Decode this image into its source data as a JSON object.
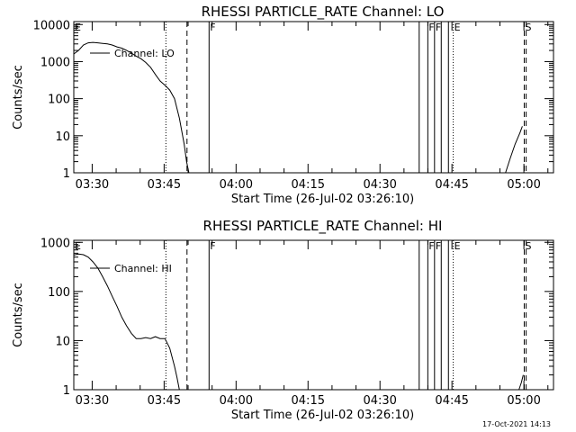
{
  "chart_data": [
    {
      "type": "line",
      "title": "RHESSI PARTICLE_RATE Channel: LO",
      "xlabel": "Start Time (26-Jul-02 03:26:10)",
      "ylabel": "Counts/sec",
      "yscale": "log",
      "xlim_min": [
        0,
        100
      ],
      "ylim": [
        1,
        12000
      ],
      "x_tick_labels": [
        "03:30",
        "03:45",
        "04:00",
        "04:15",
        "04:30",
        "04:45",
        "05:00"
      ],
      "x_tick_values_min": [
        3.83,
        18.83,
        33.83,
        48.83,
        63.83,
        78.83,
        93.83
      ],
      "y_tick_labels": [
        "1",
        "10",
        "100",
        "1000",
        "10000"
      ],
      "y_tick_values": [
        1,
        10,
        100,
        1000,
        10000
      ],
      "legend": "Channel: LO",
      "legend_position": "top-left",
      "series": [
        {
          "name": "Channel: LO",
          "x": [
            0,
            1,
            2,
            3,
            4,
            5,
            6,
            7,
            8,
            9,
            10,
            11,
            12,
            13,
            14,
            15,
            16,
            17,
            18,
            19,
            20,
            21,
            22,
            23,
            23.5,
            24
          ],
          "y": [
            1600,
            2000,
            2800,
            3200,
            3300,
            3200,
            3100,
            3000,
            2800,
            2500,
            2300,
            2000,
            1700,
            1400,
            1200,
            950,
            700,
            450,
            300,
            230,
            170,
            100,
            30,
            6,
            2,
            1
          ]
        },
        {
          "name": "",
          "x": [
            90.0,
            91.0,
            92.0,
            93.0,
            93.5
          ],
          "y": [
            1,
            2.5,
            6,
            12,
            18
          ]
        }
      ],
      "markers": [
        {
          "label": "E",
          "x": 0,
          "style": "solid"
        },
        {
          "label": "",
          "x": 19.2,
          "style": "dotted"
        },
        {
          "label": "",
          "x": 23.6,
          "style": "dashed"
        },
        {
          "label": "F",
          "x": 28.2,
          "style": "solid"
        },
        {
          "label": "",
          "x": 72.0,
          "style": "solid"
        },
        {
          "label": "F",
          "x": 73.8,
          "style": "solid"
        },
        {
          "label": "F",
          "x": 75.2,
          "style": "solid"
        },
        {
          "label": "",
          "x": 76.6,
          "style": "solid"
        },
        {
          "label": "",
          "x": 78.1,
          "style": "solid"
        },
        {
          "label": "E",
          "x": 79.1,
          "style": "dotted"
        },
        {
          "label": "S",
          "x": 93.9,
          "style": "dashed"
        },
        {
          "label": "",
          "x": 94.3,
          "style": "dashed"
        }
      ]
    },
    {
      "type": "line",
      "title": "RHESSI PARTICLE_RATE Channel: HI",
      "xlabel": "Start Time (26-Jul-02 03:26:10)",
      "ylabel": "Counts/sec",
      "yscale": "log",
      "xlim_min": [
        0,
        100
      ],
      "ylim": [
        1,
        1100
      ],
      "x_tick_labels": [
        "03:30",
        "03:45",
        "04:00",
        "04:15",
        "04:30",
        "04:45",
        "05:00"
      ],
      "x_tick_values_min": [
        3.83,
        18.83,
        33.83,
        48.83,
        63.83,
        78.83,
        93.83
      ],
      "y_tick_labels": [
        "1",
        "10",
        "100",
        "1000"
      ],
      "y_tick_values": [
        1,
        10,
        100,
        1000
      ],
      "legend": "Channel: HI",
      "legend_position": "top-left",
      "series": [
        {
          "name": "Channel: HI",
          "x": [
            0,
            1,
            2,
            3,
            4,
            5,
            6,
            7,
            8,
            9,
            10,
            11,
            12,
            13,
            14,
            15,
            16,
            17,
            18,
            19,
            20,
            21,
            21.5,
            22
          ],
          "y": [
            550,
            580,
            560,
            500,
            400,
            300,
            200,
            130,
            80,
            50,
            30,
            20,
            14,
            11,
            11,
            11.5,
            11,
            12,
            11,
            11,
            7,
            3,
            1.8,
            1
          ]
        },
        {
          "name": "",
          "x": [
            92.8,
            93.3,
            93.7
          ],
          "y": [
            1,
            1.4,
            2
          ]
        }
      ],
      "markers": [
        {
          "label": "E",
          "x": 0,
          "style": "solid"
        },
        {
          "label": "",
          "x": 19.2,
          "style": "dotted"
        },
        {
          "label": "",
          "x": 23.6,
          "style": "dashed"
        },
        {
          "label": "F",
          "x": 28.2,
          "style": "solid"
        },
        {
          "label": "",
          "x": 72.0,
          "style": "solid"
        },
        {
          "label": "F",
          "x": 73.8,
          "style": "solid"
        },
        {
          "label": "F",
          "x": 75.2,
          "style": "solid"
        },
        {
          "label": "",
          "x": 76.6,
          "style": "solid"
        },
        {
          "label": "",
          "x": 78.1,
          "style": "solid"
        },
        {
          "label": "E",
          "x": 79.1,
          "style": "dotted"
        },
        {
          "label": "S",
          "x": 93.9,
          "style": "dashed"
        },
        {
          "label": "",
          "x": 94.3,
          "style": "dashed"
        }
      ]
    }
  ],
  "footer": {
    "timestamp": "17-Oct-2021 14:13"
  }
}
